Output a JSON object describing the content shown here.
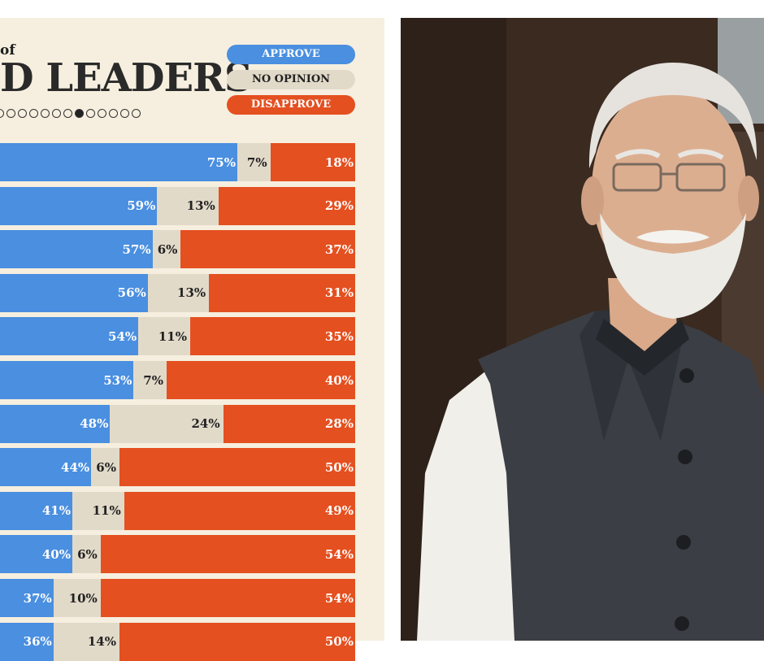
{
  "chart_data": {
    "type": "bar",
    "stacked": true,
    "orientation": "horizontal",
    "title_fragment_top": "of",
    "title_fragment_main": "D LEADERS",
    "legend_position": "top-right",
    "categories": [
      "",
      "",
      "",
      "",
      "",
      "",
      "",
      "",
      "",
      "",
      "",
      ""
    ],
    "series": [
      {
        "name": "APPROVE",
        "color": "#4a8fe0",
        "values": [
          75,
          59,
          57,
          56,
          54,
          53,
          48,
          44,
          41,
          40,
          37,
          36
        ]
      },
      {
        "name": "NO OPINION",
        "color": "#e2dac9",
        "values": [
          7,
          13,
          6,
          13,
          11,
          7,
          24,
          6,
          11,
          6,
          10,
          14
        ]
      },
      {
        "name": "DISAPPROVE",
        "color": "#e45020",
        "values": [
          18,
          29,
          37,
          31,
          35,
          40,
          28,
          50,
          49,
          54,
          54,
          50
        ]
      }
    ],
    "labels": {
      "approve": [
        "75%",
        "59%",
        "57%",
        "56%",
        "54%",
        "53%",
        "48%",
        "44%",
        "41%",
        "40%",
        "37%",
        "36%"
      ],
      "no_opinion": [
        "7%",
        "13%",
        "6%",
        "13%",
        "11%",
        "7%",
        "24%",
        "6%",
        "11%",
        "6%",
        "10%",
        "14%"
      ],
      "disapprove": [
        "18%",
        "29%",
        "37%",
        "31%",
        "35%",
        "40%",
        "28%",
        "50%",
        "49%",
        "54%",
        "54%",
        "50%"
      ]
    },
    "pagination": {
      "total": 13,
      "active": 7
    }
  },
  "legend": {
    "approve": "APPROVE",
    "no_opinion": "NO OPINION",
    "disapprove": "DISAPPROVE"
  },
  "colors": {
    "approve": "#4a8fe0",
    "no_opinion": "#e2dac9",
    "disapprove": "#e45020",
    "panel_bg": "#f6efdf"
  },
  "photo": {
    "subject": "portrait-photo"
  }
}
